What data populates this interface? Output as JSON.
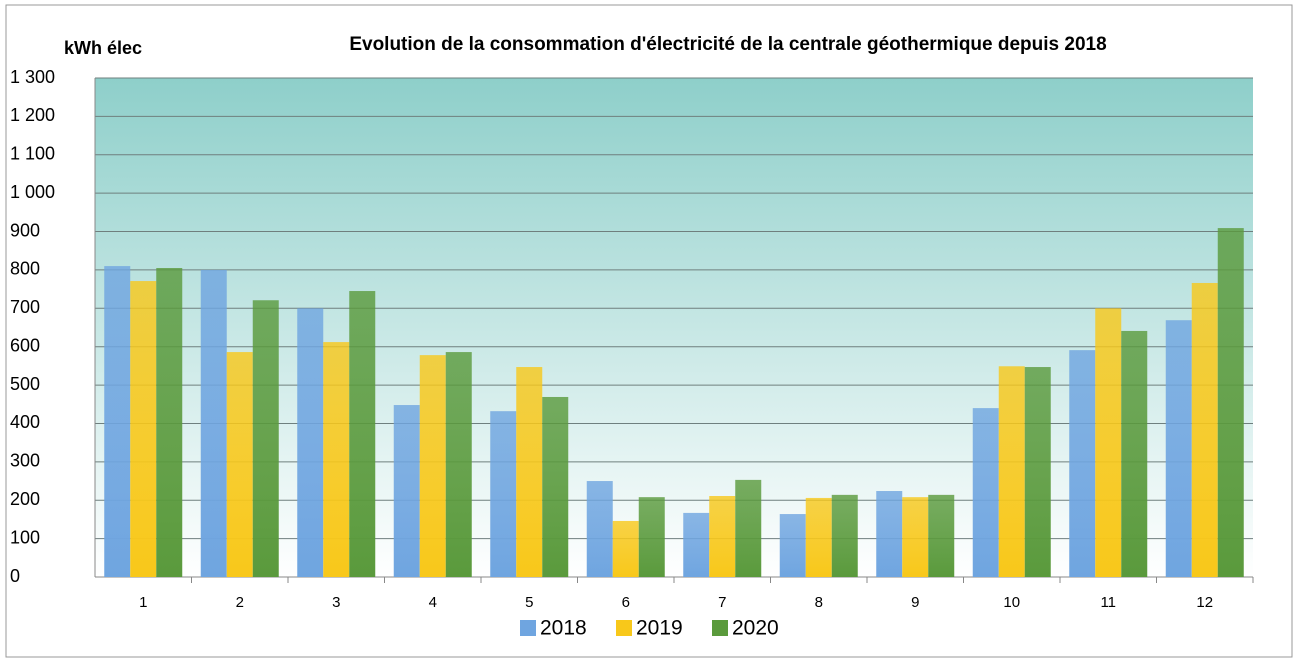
{
  "chart_data": {
    "type": "bar",
    "title": "Evolution de la consommation d'électricité de la centrale géothermique depuis 2018",
    "y_label": "kWh élec",
    "categories": [
      1,
      2,
      3,
      4,
      5,
      6,
      7,
      8,
      9,
      10,
      11,
      12
    ],
    "series": [
      {
        "name": "2018",
        "color": "#6fa5e0",
        "values": [
          810,
          800,
          700,
          448,
          432,
          250,
          167,
          164,
          224,
          440,
          591,
          669
        ]
      },
      {
        "name": "2019",
        "color": "#f8c81a",
        "values": [
          771,
          586,
          612,
          578,
          547,
          146,
          211,
          206,
          208,
          549,
          700,
          766
        ]
      },
      {
        "name": "2020",
        "color": "#5a9a3c",
        "values": [
          805,
          721,
          745,
          586,
          469,
          208,
          253,
          214,
          214,
          547,
          641,
          909
        ]
      }
    ],
    "ylim": [
      0,
      1300
    ],
    "yticks": [
      0,
      100,
      200,
      300,
      400,
      500,
      600,
      700,
      800,
      900,
      {
        "value": 1000,
        "label": "1 000"
      },
      {
        "value": 1100,
        "label": "1 100"
      },
      {
        "value": 1200,
        "label": "1 200"
      },
      {
        "value": 1300,
        "label": "1 300"
      }
    ],
    "grid": true,
    "legend": "bottom"
  }
}
